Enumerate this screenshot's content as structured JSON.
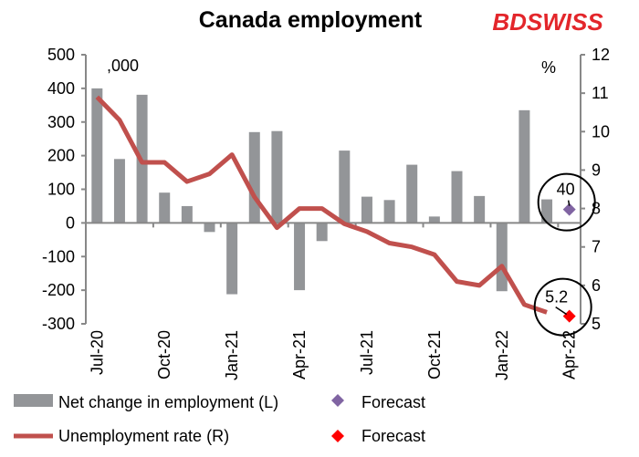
{
  "logo": {
    "text": "BDSWISS",
    "color": "#e3262b"
  },
  "chart_data": {
    "type": "bar+line",
    "title": "Canada employment",
    "left_unit": ",000",
    "right_unit": "%",
    "categories": [
      "Jul-20",
      "Aug-20",
      "Sep-20",
      "Oct-20",
      "Nov-20",
      "Dec-20",
      "Jan-21",
      "Feb-21",
      "Mar-21",
      "Apr-21",
      "May-21",
      "Jun-21",
      "Jul-21",
      "Aug-21",
      "Sep-21",
      "Oct-21",
      "Nov-21",
      "Dec-21",
      "Jan-22",
      "Feb-22",
      "Mar-22",
      "Apr-22"
    ],
    "x_tick_labels": [
      "Jul-20",
      "Oct-20",
      "Jan-21",
      "Apr-21",
      "Jul-21",
      "Oct-21",
      "Jan-22",
      "Apr-22"
    ],
    "y_left": {
      "range": [
        -300,
        500
      ],
      "ticks": [
        500,
        400,
        300,
        200,
        100,
        0,
        -100,
        -200,
        -300
      ]
    },
    "y_right": {
      "range": [
        5,
        12
      ],
      "ticks": [
        12,
        11,
        10,
        9,
        8,
        7,
        6,
        5
      ]
    },
    "series": [
      {
        "name": "Net change in employment (L)",
        "type": "bar",
        "axis": "left",
        "color": "#939598",
        "values": [
          400,
          190,
          381,
          90,
          50,
          -27,
          -212,
          270,
          273,
          -200,
          -54,
          215,
          78,
          68,
          173,
          19,
          154,
          80,
          -203,
          335,
          70,
          null
        ]
      },
      {
        "name": "Unemployment rate (R)",
        "type": "line",
        "axis": "right",
        "color": "#c0504d",
        "values": [
          10.9,
          10.3,
          9.2,
          9.2,
          8.7,
          8.9,
          9.4,
          8.3,
          7.5,
          8.0,
          8.0,
          7.6,
          7.4,
          7.1,
          7.0,
          6.8,
          6.1,
          6.0,
          6.5,
          5.5,
          5.3,
          null
        ]
      }
    ],
    "forecasts": [
      {
        "name": "Forecast",
        "series": "Net change in employment (L)",
        "category": "Apr-22",
        "value": 40,
        "label": "40",
        "color": "#8064a2"
      },
      {
        "name": "Forecast",
        "series": "Unemployment rate (R)",
        "category": "Apr-22",
        "value": 5.2,
        "label": "5.2",
        "color": "#ff0000"
      }
    ],
    "legend": {
      "placement": "bottom"
    }
  }
}
